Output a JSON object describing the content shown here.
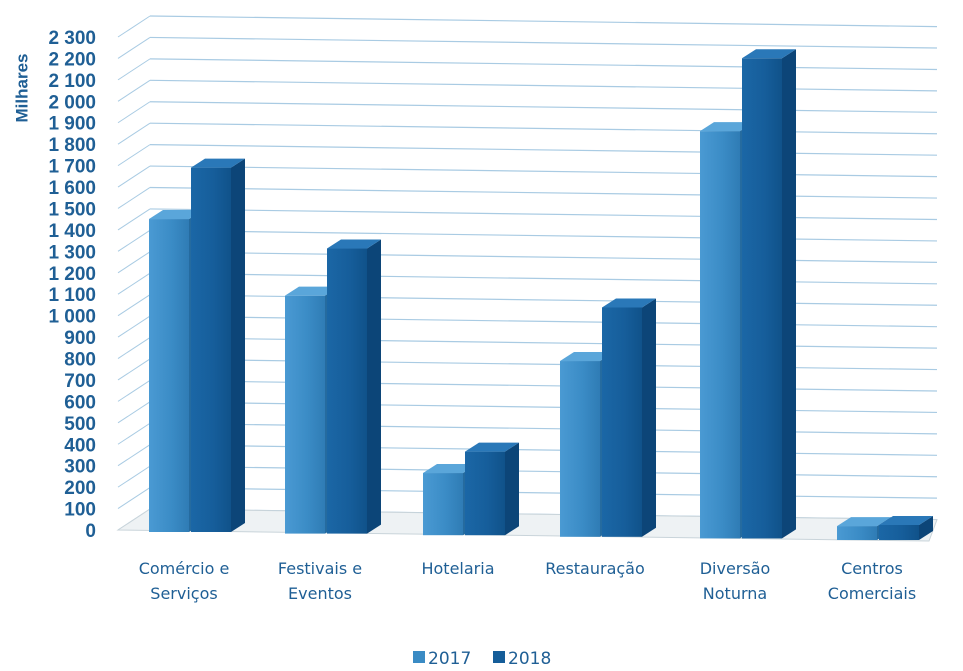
{
  "chart_data": {
    "type": "bar",
    "ylabel": "Milhares",
    "categories": [
      [
        "Comércio e",
        "Serviços"
      ],
      [
        "Festivais e",
        "Eventos"
      ],
      [
        "Hotelaria"
      ],
      [
        "Restauração"
      ],
      [
        "Diversão",
        "Noturna"
      ],
      [
        "Centros",
        "Comerciais"
      ]
    ],
    "series": [
      {
        "name": "2017",
        "values": [
          1460,
          1110,
          290,
          820,
          1900,
          65
        ]
      },
      {
        "name": "2018",
        "values": [
          1700,
          1330,
          390,
          1070,
          2240,
          70
        ]
      }
    ],
    "ylim": [
      0,
      2300
    ],
    "yticks": [
      "0",
      "100",
      "200",
      "300",
      "400",
      "500",
      "600",
      "700",
      "800",
      "900",
      "1 000",
      "1 100",
      "1 200",
      "1 300",
      "1 400",
      "1 500",
      "1 600",
      "1 700",
      "1 800",
      "1 900",
      "2 000",
      "2 100",
      "2 200",
      "2 300"
    ],
    "legend": "bottom",
    "grid": true,
    "colors": {
      "series_2017": "#3a8bc4",
      "series_2018": "#155d99",
      "grid": "#a9cbe3",
      "text": "#1f5f95"
    }
  }
}
